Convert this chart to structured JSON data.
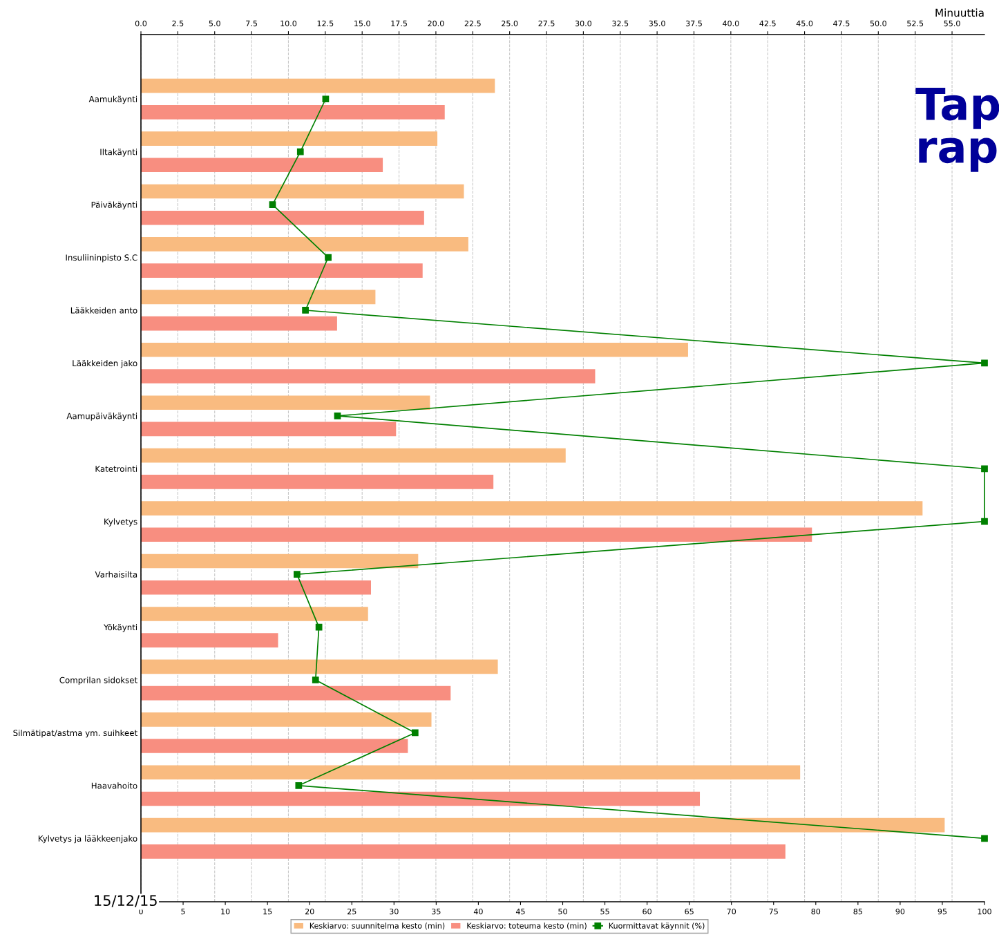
{
  "chart_data": {
    "type": "bar",
    "orientation": "horizontal",
    "categories": [
      "Aamukäynti",
      "Iltakäynti",
      "Päiväkäynti",
      "Insuliininpisto S.C",
      "Lääkkeiden anto",
      "Lääkkeiden jako",
      "Aamupäiväkäynti",
      "Katetrointi",
      "Kylvetys",
      "Varhaisilta",
      "Yökäynti",
      "Comprilan sidokset",
      "Silmätipat/astma ym. suihkeet",
      "Haavahoito",
      "Kylvetys ja lääkkeenjako"
    ],
    "series": [
      {
        "name": "Keskiarvo: suunnitelma kesto (min)",
        "axis": "x2",
        "color": "#f9bb80",
        "values": [
          24.0,
          20.1,
          21.9,
          22.2,
          15.9,
          37.1,
          19.6,
          28.8,
          53.0,
          18.8,
          15.4,
          24.2,
          19.7,
          44.7,
          54.5
        ]
      },
      {
        "name": "Keskiarvo: toteuma kesto (min)",
        "axis": "x2",
        "color": "#f88e80",
        "values": [
          20.6,
          16.4,
          19.2,
          19.1,
          13.3,
          30.8,
          17.3,
          23.9,
          45.5,
          15.6,
          9.3,
          21.0,
          18.1,
          37.9,
          43.7
        ]
      },
      {
        "name": "Kuormittavat käynnit (%)",
        "type": "line",
        "color": "#008000",
        "values": [
          21.9,
          18.9,
          15.6,
          22.2,
          19.5,
          100,
          23.3,
          100,
          100,
          18.5,
          21.1,
          20.7,
          32.5,
          18.7,
          100
        ]
      }
    ],
    "x2label": "Minuuttia",
    "x2lim": [
      0,
      57.2
    ],
    "x2ticks": [
      {
        "value": 0,
        "label": "0.0"
      },
      {
        "value": 2.5,
        "label": "2.5"
      },
      {
        "value": 5,
        "label": "5.0"
      },
      {
        "value": 7.5,
        "label": "7.5"
      },
      {
        "value": 10,
        "label": "10.0"
      },
      {
        "value": 12.5,
        "label": "12.5"
      },
      {
        "value": 15,
        "label": "15.0"
      },
      {
        "value": 17.5,
        "label": "17.5"
      },
      {
        "value": 20,
        "label": "20.0"
      },
      {
        "value": 22.5,
        "label": "22.5"
      },
      {
        "value": 25,
        "label": "25.0"
      },
      {
        "value": 27.5,
        "label": "27.5"
      },
      {
        "value": 30,
        "label": "30.0"
      },
      {
        "value": 32.5,
        "label": "32.5"
      },
      {
        "value": 35,
        "label": "35.0"
      },
      {
        "value": 37.5,
        "label": "37.5"
      },
      {
        "value": 40,
        "label": "40.0"
      },
      {
        "value": 42.5,
        "label": "42.5"
      },
      {
        "value": 45,
        "label": "45.0"
      },
      {
        "value": 47.5,
        "label": "47.5"
      },
      {
        "value": 50,
        "label": "50.0"
      },
      {
        "value": 52.5,
        "label": "52.5"
      },
      {
        "value": 55,
        "label": "55.0"
      }
    ],
    "xlim": [
      0,
      100
    ],
    "xticks": [
      0,
      5,
      10,
      15,
      20,
      25,
      30,
      35,
      40,
      45,
      50,
      55,
      60,
      65,
      70,
      75,
      80,
      85,
      90,
      95,
      100
    ],
    "marker": "square",
    "grid": "x",
    "legend": "bottom",
    "annotations": [
      "Tap\nrap",
      "15/12/15"
    ]
  }
}
